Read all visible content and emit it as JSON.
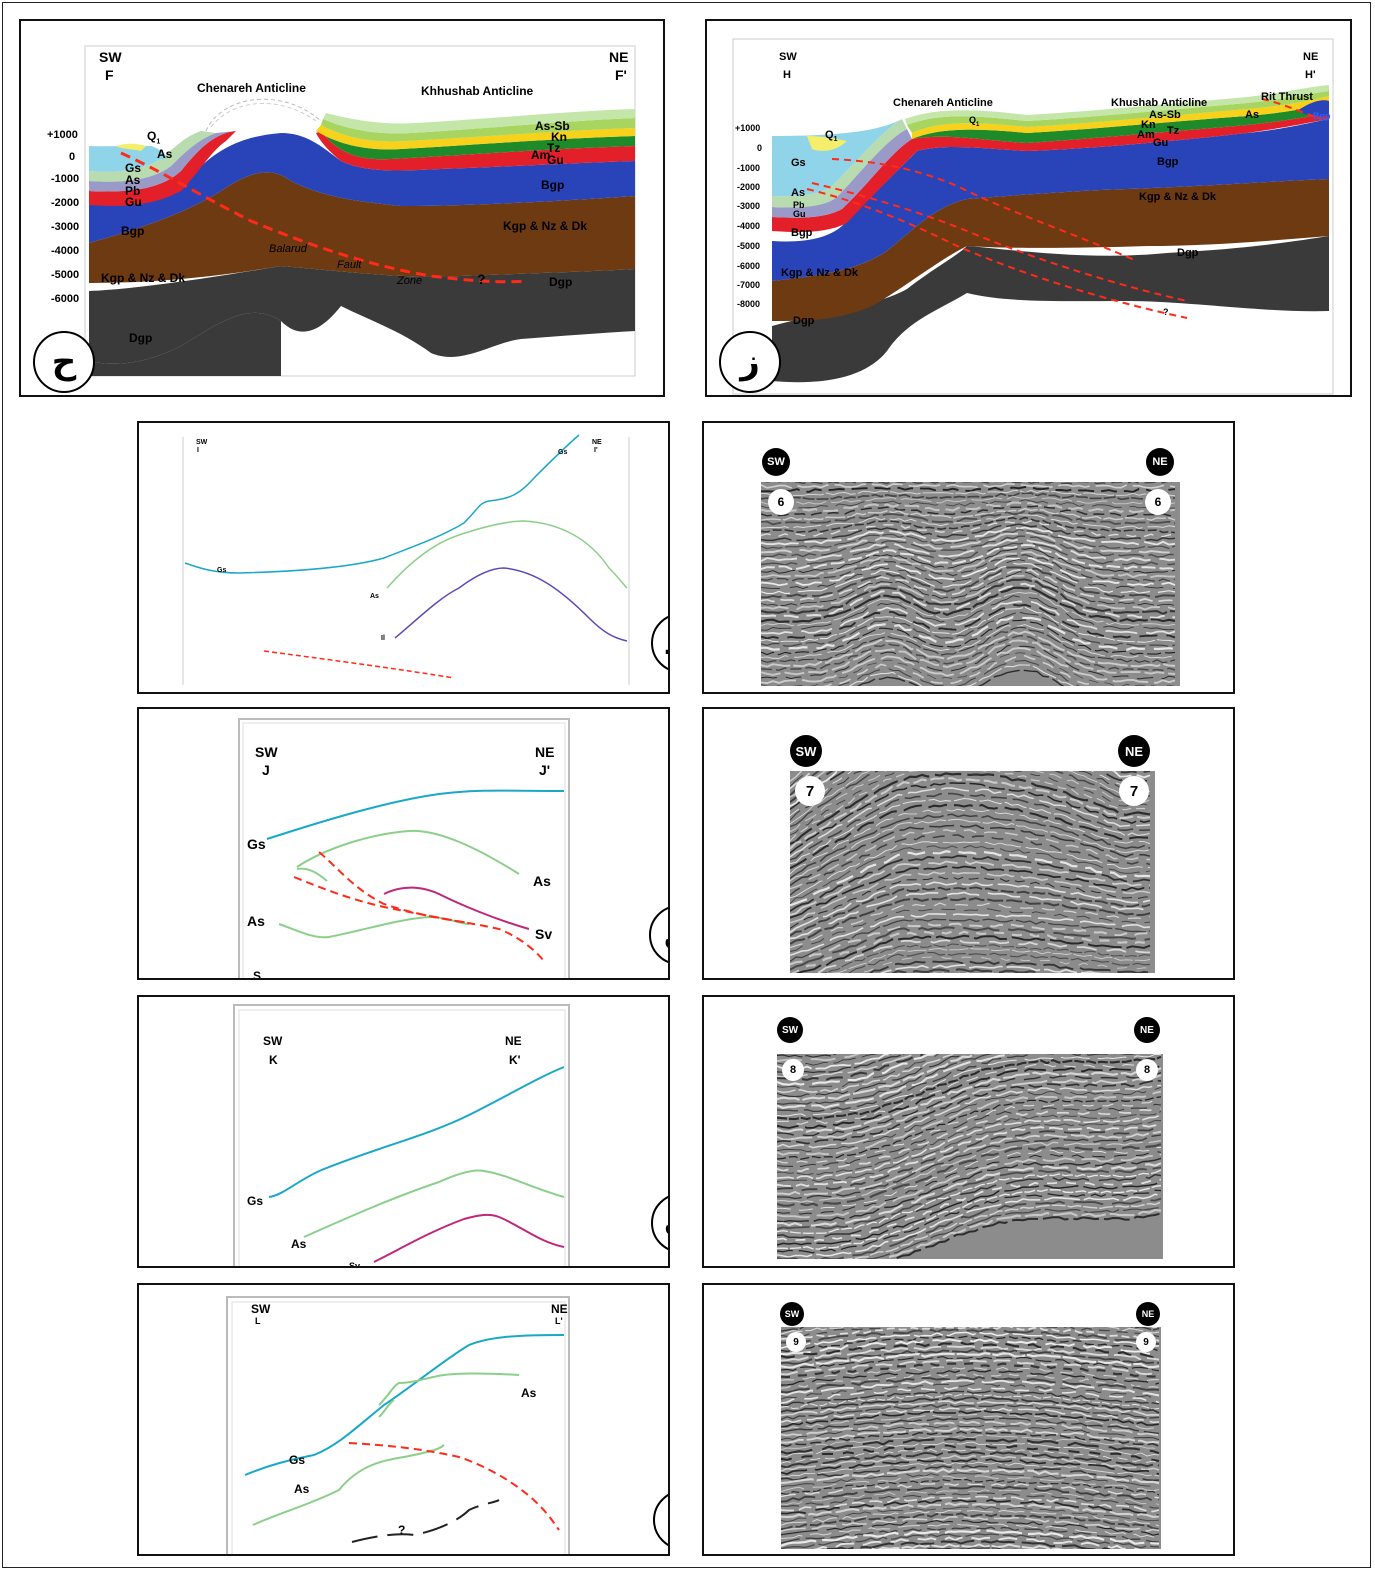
{
  "section_f": {
    "dir_left": "SW",
    "id_left": "F",
    "dir_right": "NE",
    "id_right": "F'",
    "anticline_1": "Chenareh Anticline",
    "anticline_2": "Khhushab Anticline",
    "depths": [
      "+1000",
      "0",
      "-1000",
      "-2000",
      "-3000",
      "-4000",
      "-5000",
      "-6000"
    ],
    "units": {
      "q1": "Q",
      "q1sub": "1",
      "as_top": "As",
      "gs": "Gs",
      "as": "As",
      "pb": "Pb",
      "gu": "Gu",
      "bgp_left": "Bgp",
      "kgp_left": "Kgp & Nz & Dk",
      "dgp_left": "Dgp",
      "assb": "As-Sb",
      "kn": "Kn",
      "tz": "Tz",
      "am": "Am",
      "gu_right": "Gu",
      "bgp_right": "Bgp",
      "kgp_right": "Kgp & Nz & Dk",
      "dgp_right": "Dgp"
    },
    "fault_words": [
      "Balarud",
      "Fault",
      "Zone"
    ],
    "question": "?",
    "letter": "ح"
  },
  "section_h": {
    "dir_left": "SW",
    "id_left": "H",
    "dir_right": "NE",
    "id_right": "H'",
    "anticline_1": "Chenareh Anticline",
    "anticline_2": "Khushab Anticline",
    "thrust": "Rit Thrust",
    "depths": [
      "+1000",
      "0",
      "-1000",
      "-2000",
      "-3000",
      "-4000",
      "-5000",
      "-6000",
      "-7000",
      "-8000"
    ],
    "units": {
      "q1": "Q",
      "q1sub": "1",
      "q1b": "Q",
      "q1bsub": "1",
      "gs": "Gs",
      "as": "As",
      "pb": "Pb",
      "gu": "Gu",
      "bgp_left": "Bgp",
      "kgp_left": "Kgp & Nz & Dk",
      "dgp_left": "Dgp",
      "assb": "As-Sb",
      "kn": "Kn",
      "tz": "Tz",
      "am": "Am",
      "gu_right": "Gu",
      "bgp_right": "Bgp",
      "kgp_right": "Kgp & Nz & Dk",
      "dgp_right": "Dgp",
      "as_right": "As",
      "bgp_edge": "Bgp"
    },
    "question": "?",
    "letter": "ز"
  },
  "section_i": {
    "dir_left": "SW",
    "id_left": "I",
    "dir_right": "NE",
    "id_right": "I'",
    "horizons": {
      "gs": "Gs",
      "gs_top": "Gs",
      "as": "As",
      "il": "Il"
    },
    "letter": "ط"
  },
  "seismic_6": {
    "dir_left": "SW",
    "dir_right": "NE",
    "num": "6"
  },
  "section_j": {
    "dir_left": "SW",
    "id_left": "J",
    "dir_right": "NE",
    "id_right": "J'",
    "horizons": {
      "gs": "Gs",
      "as_right": "As",
      "as_left": "As",
      "sv": "Sv",
      "cut": "S"
    },
    "letter": "ی"
  },
  "seismic_7": {
    "dir_left": "SW",
    "dir_right": "NE",
    "num": "7"
  },
  "section_k": {
    "dir_left": "SW",
    "id_left": "K",
    "dir_right": "NE",
    "id_right": "K'",
    "horizons": {
      "gs": "Gs",
      "as": "As",
      "sv": "Sv"
    },
    "letter": "ک"
  },
  "seismic_8": {
    "dir_left": "SW",
    "dir_right": "NE",
    "num": "8"
  },
  "section_l": {
    "dir_left": "SW",
    "id_left": "L",
    "dir_right": "NE",
    "id_right": "L'",
    "horizons": {
      "as_right": "As",
      "gs": "Gs",
      "as_left": "As",
      "question": "?"
    },
    "letter": "ل"
  },
  "seismic_9": {
    "dir_left": "SW",
    "dir_right": "NE",
    "num": "9"
  },
  "colors": {
    "dgp": "#3a3a3a",
    "kgp": "#6e3a12",
    "bgp": "#2844b8",
    "gu": "#e3202a",
    "pb": "#9a9ac8",
    "as": "#b8dcb0",
    "gs": "#8fd4e8",
    "q": "#f5ee6a",
    "tz": "#f7d11a",
    "am": "#1e8a2a",
    "kn": "#a8d460",
    "assb": "#c4e6a8",
    "fault": "#ff2a1a",
    "gs_line": "#1aa8c8",
    "as_line": "#8ccf8a",
    "sv_line": "#c0267a",
    "il_line": "#5a4ab8"
  }
}
